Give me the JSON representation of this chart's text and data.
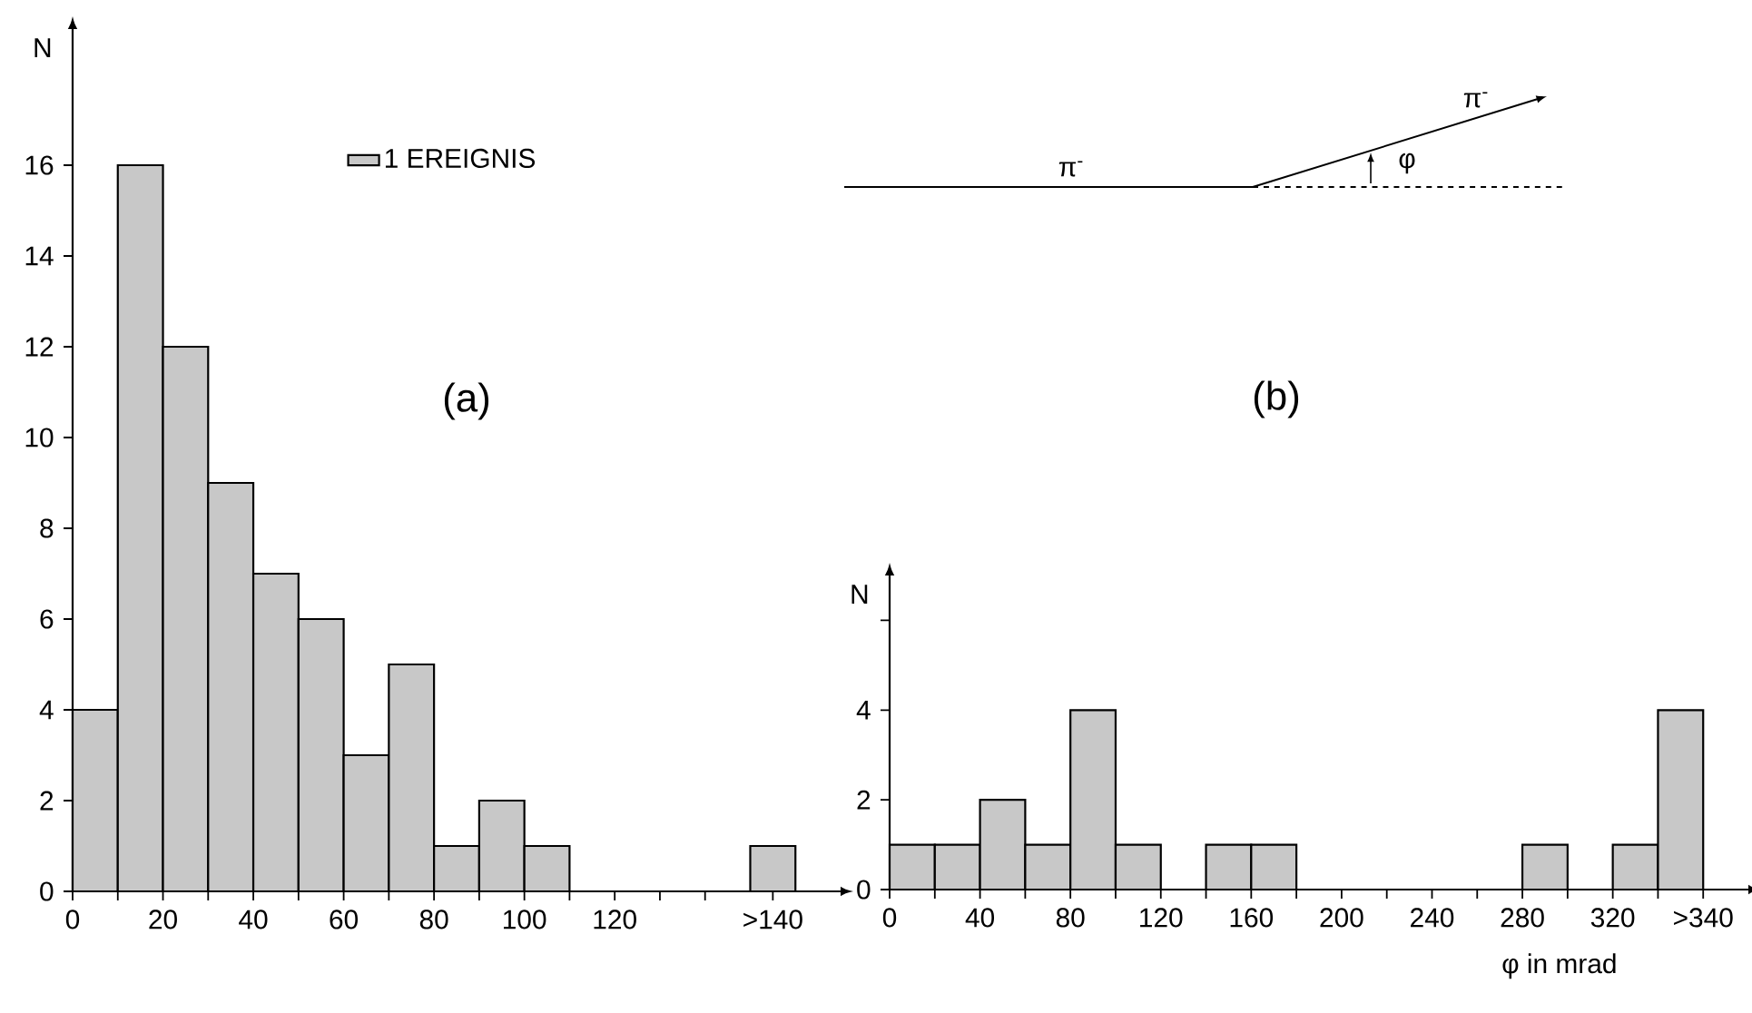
{
  "chart_data": [
    {
      "type": "histogram",
      "ylabel": "N",
      "bins": [
        0,
        10,
        20,
        30,
        40,
        50,
        60,
        70,
        80,
        90,
        100,
        110,
        120,
        130,
        140,
        150,
        160
      ],
      "series": [
        {
          "name": "1 EREIGNIS",
          "color": "#c8c8c8",
          "values": [
            4,
            16,
            12,
            9,
            7,
            6,
            3,
            5,
            1,
            2,
            1,
            0,
            0,
            0,
            0,
            1
          ]
        }
      ],
      "xlim": [
        0,
        170
      ],
      "ylim": [
        0,
        19
      ],
      "xticks": [
        0,
        {
          "value": 10,
          "label": null
        },
        20,
        {
          "value": 30,
          "label": null
        },
        40,
        {
          "value": 50,
          "label": null
        },
        60,
        {
          "value": 70,
          "label": null
        },
        80,
        {
          "value": 90,
          "label": null
        },
        100,
        {
          "value": 110,
          "label": null
        },
        120,
        {
          "value": 130,
          "label": null
        },
        {
          "value": 140,
          "label": null
        },
        {
          "value": 155,
          "label": ">140"
        }
      ],
      "yticks": [
        0,
        2,
        4,
        6,
        8,
        10,
        12,
        14,
        16
      ],
      "legend": "top",
      "annotations": [
        "(a)"
      ]
    },
    {
      "type": "histogram",
      "ylabel": "N",
      "xlabel": "φ in mrad",
      "bins": [
        0,
        20,
        40,
        60,
        80,
        100,
        120,
        140,
        160,
        180,
        200,
        220,
        240,
        260,
        280,
        300,
        320,
        340,
        360
      ],
      "series": [
        {
          "color": "#c8c8c8",
          "values": [
            1,
            1,
            2,
            1,
            4,
            1,
            0,
            1,
            1,
            0,
            0,
            0,
            0,
            0,
            1,
            0,
            1,
            4
          ]
        }
      ],
      "xlim": [
        0,
        380
      ],
      "ylim": [
        0,
        7
      ],
      "xticks": [
        0,
        {
          "value": 20,
          "label": null
        },
        40,
        {
          "value": 60,
          "label": null
        },
        80,
        {
          "value": 100,
          "label": null
        },
        120,
        {
          "value": 140,
          "label": null
        },
        160,
        {
          "value": 180,
          "label": null
        },
        200,
        {
          "value": 220,
          "label": null
        },
        240,
        {
          "value": 260,
          "label": null
        },
        280,
        {
          "value": 300,
          "label": null
        },
        320,
        {
          "value": 340,
          "label": null
        },
        {
          "value": 360,
          "label": ">340"
        }
      ],
      "yticks": [
        0,
        2,
        4,
        {
          "value": 6,
          "label": null
        }
      ],
      "annotations": [
        "(b)",
        "π$^{-}$",
        "π$^{-}$",
        "φ"
      ]
    }
  ]
}
